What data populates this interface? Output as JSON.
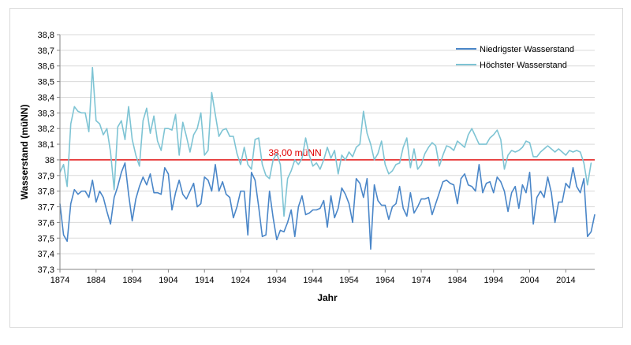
{
  "chart_data": {
    "type": "line",
    "title": "",
    "xlabel": "Jahr",
    "ylabel": "Wasserstand (müNN)",
    "xlim": [
      1874,
      2022
    ],
    "ylim": [
      37.3,
      38.8
    ],
    "x_ticks": [
      1874,
      1884,
      1894,
      1904,
      1914,
      1924,
      1934,
      1944,
      1954,
      1964,
      1974,
      1984,
      1994,
      2004,
      2014
    ],
    "y_ticks": [
      {
        "value": 37.3,
        "label": "37,3"
      },
      {
        "value": 37.4,
        "label": "37,4"
      },
      {
        "value": 37.5,
        "label": "37,5"
      },
      {
        "value": 37.6,
        "label": "37,6"
      },
      {
        "value": 37.7,
        "label": "37,7"
      },
      {
        "value": 37.8,
        "label": "37,8"
      },
      {
        "value": 37.9,
        "label": "37,9"
      },
      {
        "value": 38.0,
        "label": "38"
      },
      {
        "value": 38.1,
        "label": "38,1"
      },
      {
        "value": 38.2,
        "label": "38,2"
      },
      {
        "value": 38.3,
        "label": "38,3"
      },
      {
        "value": 38.4,
        "label": "38,4"
      },
      {
        "value": 38.5,
        "label": "38,5"
      },
      {
        "value": 38.6,
        "label": "38,6"
      },
      {
        "value": 38.7,
        "label": "38,7"
      },
      {
        "value": 38.8,
        "label": "38,8"
      }
    ],
    "grid": true,
    "legend_position": "top-right",
    "reference_line": {
      "value": 38.0,
      "label": "38,00 müNN",
      "color": "#e00000"
    },
    "x_start": 1874,
    "series": [
      {
        "name": "Niedrigster Wasserstand",
        "color": "#4a86c8",
        "values": [
          37.72,
          37.52,
          37.48,
          37.72,
          37.81,
          37.78,
          37.8,
          37.8,
          37.76,
          37.87,
          37.73,
          37.8,
          37.76,
          37.67,
          37.59,
          37.76,
          37.83,
          37.92,
          37.98,
          37.78,
          37.61,
          37.75,
          37.83,
          37.89,
          37.84,
          37.91,
          37.79,
          37.79,
          37.78,
          37.95,
          37.91,
          37.68,
          37.79,
          37.87,
          37.78,
          37.75,
          37.8,
          37.85,
          37.7,
          37.72,
          37.89,
          37.87,
          37.8,
          37.97,
          37.8,
          37.86,
          37.78,
          37.76,
          37.63,
          37.7,
          37.8,
          37.8,
          37.52,
          37.92,
          37.87,
          37.7,
          37.51,
          37.52,
          37.8,
          37.63,
          37.49,
          37.55,
          37.54,
          37.6,
          37.68,
          37.51,
          37.7,
          37.77,
          37.65,
          37.66,
          37.68,
          37.68,
          37.69,
          37.74,
          37.57,
          37.77,
          37.63,
          37.69,
          37.82,
          37.78,
          37.72,
          37.6,
          37.88,
          37.85,
          37.76,
          37.88,
          37.43,
          37.84,
          37.74,
          37.71,
          37.71,
          37.62,
          37.7,
          37.72,
          37.83,
          37.69,
          37.64,
          37.79,
          37.66,
          37.7,
          37.75,
          37.75,
          37.76,
          37.65,
          37.72,
          37.79,
          37.86,
          37.87,
          37.85,
          37.84,
          37.72,
          37.88,
          37.91,
          37.84,
          37.83,
          37.8,
          37.97,
          37.79,
          37.85,
          37.86,
          37.79,
          37.89,
          37.86,
          37.8,
          37.67,
          37.79,
          37.83,
          37.69,
          37.84,
          37.79,
          37.92,
          37.59,
          37.76,
          37.8,
          37.76,
          37.89,
          37.79,
          37.6,
          37.73,
          37.73,
          37.85,
          37.82,
          37.95,
          37.83,
          37.79,
          37.88,
          37.51,
          37.54,
          37.65
        ]
      },
      {
        "name": "Höchster Wasserstand",
        "color": "#7ec4d4",
        "values": [
          37.92,
          37.97,
          37.83,
          38.23,
          38.34,
          38.31,
          38.3,
          38.3,
          38.18,
          38.59,
          38.25,
          38.23,
          38.16,
          38.2,
          38.05,
          37.81,
          38.21,
          38.25,
          38.13,
          38.34,
          38.13,
          38.03,
          37.96,
          38.25,
          38.33,
          38.17,
          38.28,
          38.12,
          38.06,
          38.2,
          38.2,
          38.19,
          38.29,
          38.03,
          38.24,
          38.15,
          38.05,
          38.16,
          38.2,
          38.3,
          38.03,
          38.06,
          38.43,
          38.29,
          38.15,
          38.19,
          38.2,
          38.15,
          38.15,
          38.04,
          37.97,
          38.08,
          37.97,
          37.94,
          38.13,
          38.14,
          37.97,
          37.9,
          37.88,
          38.0,
          38.04,
          37.97,
          37.64,
          37.88,
          37.93,
          38.0,
          37.97,
          38.01,
          38.14,
          38.03,
          37.96,
          37.98,
          37.94,
          38.0,
          38.08,
          38.01,
          38.06,
          37.91,
          38.03,
          38.0,
          38.05,
          38.02,
          38.08,
          38.1,
          38.31,
          38.17,
          38.1,
          38.0,
          38.04,
          38.12,
          37.97,
          37.91,
          37.93,
          37.97,
          37.98,
          38.08,
          38.14,
          37.95,
          38.07,
          37.94,
          37.97,
          38.04,
          38.08,
          38.11,
          38.09,
          37.96,
          38.03,
          38.09,
          38.08,
          38.06,
          38.12,
          38.1,
          38.08,
          38.16,
          38.2,
          38.15,
          38.1,
          38.1,
          38.1,
          38.14,
          38.16,
          38.19,
          38.13,
          37.94,
          38.03,
          38.06,
          38.05,
          38.06,
          38.08,
          38.12,
          38.11,
          38.02,
          38.02,
          38.05,
          38.07,
          38.09,
          38.07,
          38.05,
          38.07,
          38.05,
          38.03,
          38.06,
          38.05,
          38.06,
          38.05,
          37.98,
          37.84,
          37.98
        ]
      }
    ]
  }
}
